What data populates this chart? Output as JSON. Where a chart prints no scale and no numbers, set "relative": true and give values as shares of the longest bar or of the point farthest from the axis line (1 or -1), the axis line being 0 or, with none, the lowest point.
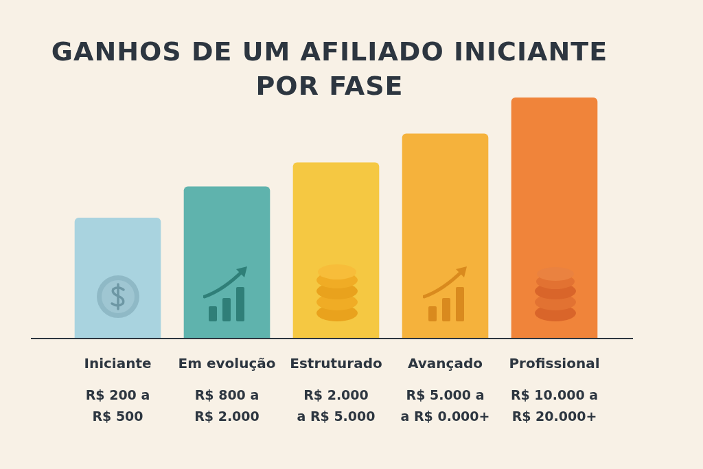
{
  "chart_data": {
    "type": "bar",
    "title": "GANHOS DE UM AFILIADO INICIANTE POR FASE",
    "categories": [
      "Iniciante",
      "Em evolução",
      "Estruturado",
      "Avançado",
      "Profissional"
    ],
    "values": [
      0.5,
      0.63,
      0.73,
      0.85,
      1
    ],
    "colors": [
      "#a9d3df",
      "#5fb3ad",
      "#f5c842",
      "#f5b23c",
      "#f0843a"
    ],
    "relative": true,
    "legend": false,
    "annotations": [
      "R$ 200 a\nR$ 500",
      "R$ 800 a\nR$ 2.000",
      "R$ 2.000\na R$ 5.000",
      "R$ 5.000 a\na R$ 0.000+",
      "R$ 10.000 a\nR$ 20.000+"
    ]
  }
}
